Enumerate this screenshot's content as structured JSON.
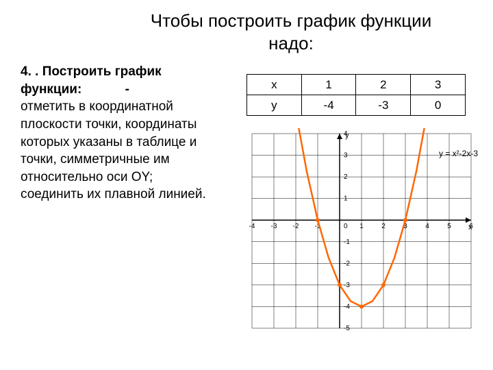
{
  "title_line1": "Чтобы построить график функции",
  "title_line2": "надо:",
  "section_number": "4. .",
  "section_heading1": "Построить график",
  "section_heading2": "функции:",
  "section_dash": "-",
  "instructions": "отметить в координатной плоскости точки, координаты которых указаны в таблице и точки, симметричные им относительно оси OY;\nсоединить их плавной линией.",
  "table": {
    "rows": [
      [
        "х",
        "1",
        "2",
        "3"
      ],
      [
        "у",
        "-4",
        "-3",
        "0"
      ]
    ]
  },
  "chart": {
    "type": "parabola",
    "equation_label": "y = x²-2x-3",
    "x_axis_label": "x",
    "y_axis_label": "y",
    "xlim": [
      -4,
      6
    ],
    "ylim": [
      -5,
      4
    ],
    "xticks": [
      -4,
      -3,
      -2,
      -1,
      0,
      1,
      2,
      3,
      4,
      5,
      6
    ],
    "yticks": [
      -5,
      -4,
      -3,
      -2,
      -1,
      1,
      2,
      3,
      4
    ],
    "grid_color": "#000000",
    "grid_width": 0.5,
    "axis_color": "#000000",
    "axis_width": 1.5,
    "curve_color": "#ff6600",
    "curve_width": 2.5,
    "marker_color": "#ff6600",
    "marker_radius": 3,
    "background_color": "#ffffff",
    "vertex": [
      1,
      -4
    ],
    "curve_points": [
      [
        -2,
        5
      ],
      [
        -1.5,
        2.25
      ],
      [
        -1,
        0
      ],
      [
        -0.5,
        -1.75
      ],
      [
        0,
        -3
      ],
      [
        0.5,
        -3.75
      ],
      [
        1,
        -4
      ],
      [
        1.5,
        -3.75
      ],
      [
        2,
        -3
      ],
      [
        2.5,
        -1.75
      ],
      [
        3,
        0
      ],
      [
        3.5,
        2.25
      ],
      [
        4,
        5
      ]
    ],
    "marked_points": [
      [
        1,
        -4
      ],
      [
        2,
        -3
      ],
      [
        3,
        0
      ],
      [
        0,
        -3
      ],
      [
        -1,
        0
      ]
    ]
  }
}
